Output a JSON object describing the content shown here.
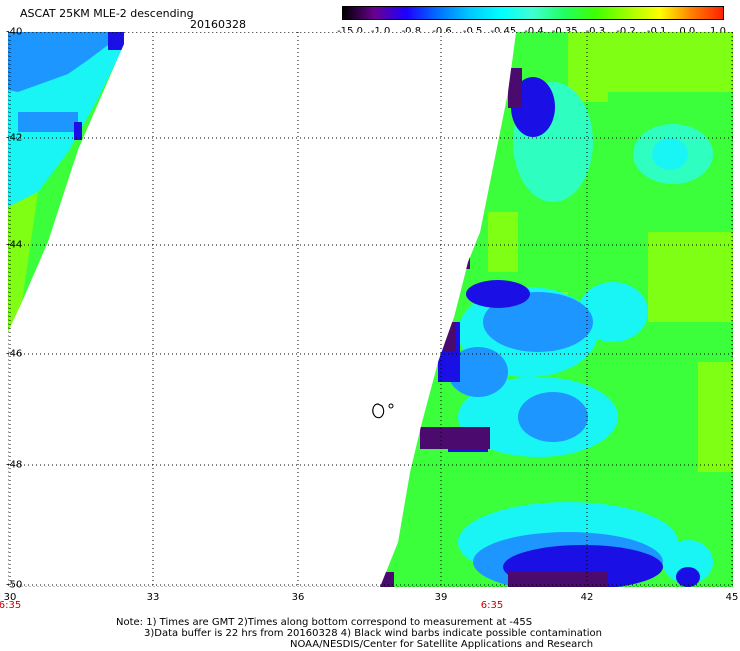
{
  "header": {
    "title": "ASCAT 25KM MLE-2 descending",
    "date": "20160328"
  },
  "colorbar": {
    "labels": [
      "-15.0",
      "-1.0",
      "-0.8",
      "-0.6",
      "-0.5",
      "-0.45",
      "-0.4",
      "-0.35",
      "-0.3",
      "-0.2",
      "-0.1",
      "0.0",
      "1.0"
    ],
    "colors": [
      "#000000",
      "#6a0090",
      "#1d00ff",
      "#0070ff",
      "#00c8ff",
      "#00ffff",
      "#40ffd0",
      "#20ff60",
      "#40ff00",
      "#a0ff00",
      "#ffff00",
      "#ff8000",
      "#ff2000"
    ]
  },
  "map": {
    "lat_labels": [
      "-40",
      "-42",
      "-44",
      "-46",
      "-48",
      "-50"
    ],
    "lon_labels": [
      "30",
      "33",
      "36",
      "39",
      "42",
      "45"
    ],
    "time_labels": [
      "6:35",
      "6:35"
    ],
    "grid": "dotted",
    "palette": {
      "dark_purple": "#4a0a6e",
      "blue": "#1a10e6",
      "light_blue": "#1e96ff",
      "cyan": "#19f5f5",
      "aqua": "#2effc0",
      "green": "#3cff3c",
      "lime": "#7eff14"
    }
  },
  "notes": [
    "Note: 1) Times are GMT 2)Times along bottom correspond to measurement at -45S",
    "3)Data buffer is 22 hrs from 20160328 4) Black wind barbs indicate possible contamination",
    "NOAA/NESDIS/Center for Satellite Applications and Research"
  ]
}
